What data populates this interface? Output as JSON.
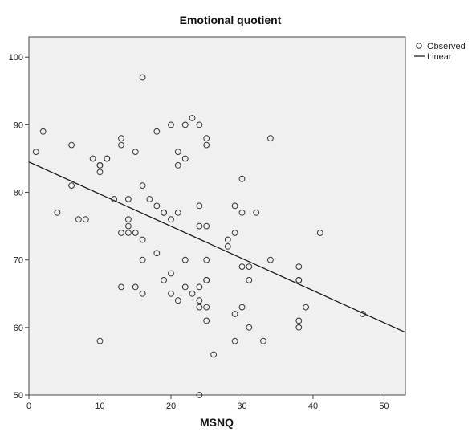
{
  "chart_data": {
    "type": "scatter",
    "title": "Emotional quotient",
    "xlabel": "MSNQ",
    "ylabel": "",
    "xlim": [
      0,
      53
    ],
    "ylim": [
      50,
      103
    ],
    "xticks": [
      0,
      10,
      20,
      30,
      40,
      50
    ],
    "yticks": [
      50,
      60,
      70,
      80,
      90,
      100
    ],
    "grid": false,
    "legend": {
      "placement": "top-right",
      "entries": [
        "Observed",
        "Linear"
      ]
    },
    "series": [
      {
        "name": "Observed",
        "kind": "points",
        "points": [
          [
            1,
            86
          ],
          [
            2,
            89
          ],
          [
            4,
            77
          ],
          [
            6,
            87
          ],
          [
            6,
            81
          ],
          [
            7,
            76
          ],
          [
            8,
            76
          ],
          [
            9,
            85
          ],
          [
            10,
            84
          ],
          [
            10,
            84
          ],
          [
            10,
            83
          ],
          [
            10,
            58
          ],
          [
            11,
            85
          ],
          [
            11,
            85
          ],
          [
            12,
            79
          ],
          [
            13,
            88
          ],
          [
            13,
            87
          ],
          [
            13,
            74
          ],
          [
            13,
            66
          ],
          [
            14,
            79
          ],
          [
            14,
            76
          ],
          [
            14,
            75
          ],
          [
            14,
            74
          ],
          [
            15,
            86
          ],
          [
            15,
            74
          ],
          [
            15,
            66
          ],
          [
            16,
            97
          ],
          [
            16,
            81
          ],
          [
            16,
            73
          ],
          [
            16,
            70
          ],
          [
            16,
            65
          ],
          [
            17,
            79
          ],
          [
            18,
            89
          ],
          [
            18,
            78
          ],
          [
            18,
            71
          ],
          [
            19,
            77
          ],
          [
            19,
            77
          ],
          [
            19,
            67
          ],
          [
            20,
            90
          ],
          [
            20,
            76
          ],
          [
            20,
            68
          ],
          [
            20,
            65
          ],
          [
            21,
            86
          ],
          [
            21,
            84
          ],
          [
            21,
            77
          ],
          [
            21,
            64
          ],
          [
            22,
            90
          ],
          [
            22,
            85
          ],
          [
            22,
            70
          ],
          [
            22,
            66
          ],
          [
            23,
            91
          ],
          [
            23,
            65
          ],
          [
            24,
            90
          ],
          [
            24,
            78
          ],
          [
            24,
            75
          ],
          [
            24,
            66
          ],
          [
            24,
            64
          ],
          [
            24,
            63
          ],
          [
            24,
            50
          ],
          [
            25,
            88
          ],
          [
            25,
            87
          ],
          [
            25,
            75
          ],
          [
            25,
            70
          ],
          [
            25,
            67
          ],
          [
            25,
            67
          ],
          [
            25,
            63
          ],
          [
            25,
            61
          ],
          [
            26,
            56
          ],
          [
            28,
            73
          ],
          [
            28,
            72
          ],
          [
            29,
            78
          ],
          [
            29,
            74
          ],
          [
            29,
            62
          ],
          [
            29,
            58
          ],
          [
            30,
            82
          ],
          [
            30,
            77
          ],
          [
            30,
            69
          ],
          [
            30,
            63
          ],
          [
            31,
            69
          ],
          [
            31,
            67
          ],
          [
            31,
            60
          ],
          [
            32,
            77
          ],
          [
            33,
            58
          ],
          [
            34,
            88
          ],
          [
            34,
            70
          ],
          [
            38,
            69
          ],
          [
            38,
            67
          ],
          [
            38,
            67
          ],
          [
            38,
            61
          ],
          [
            38,
            60
          ],
          [
            39,
            63
          ],
          [
            41,
            74
          ],
          [
            47,
            62
          ]
        ]
      },
      {
        "name": "Linear",
        "kind": "line",
        "intercept": 84.5,
        "slope": -0.476
      }
    ]
  }
}
